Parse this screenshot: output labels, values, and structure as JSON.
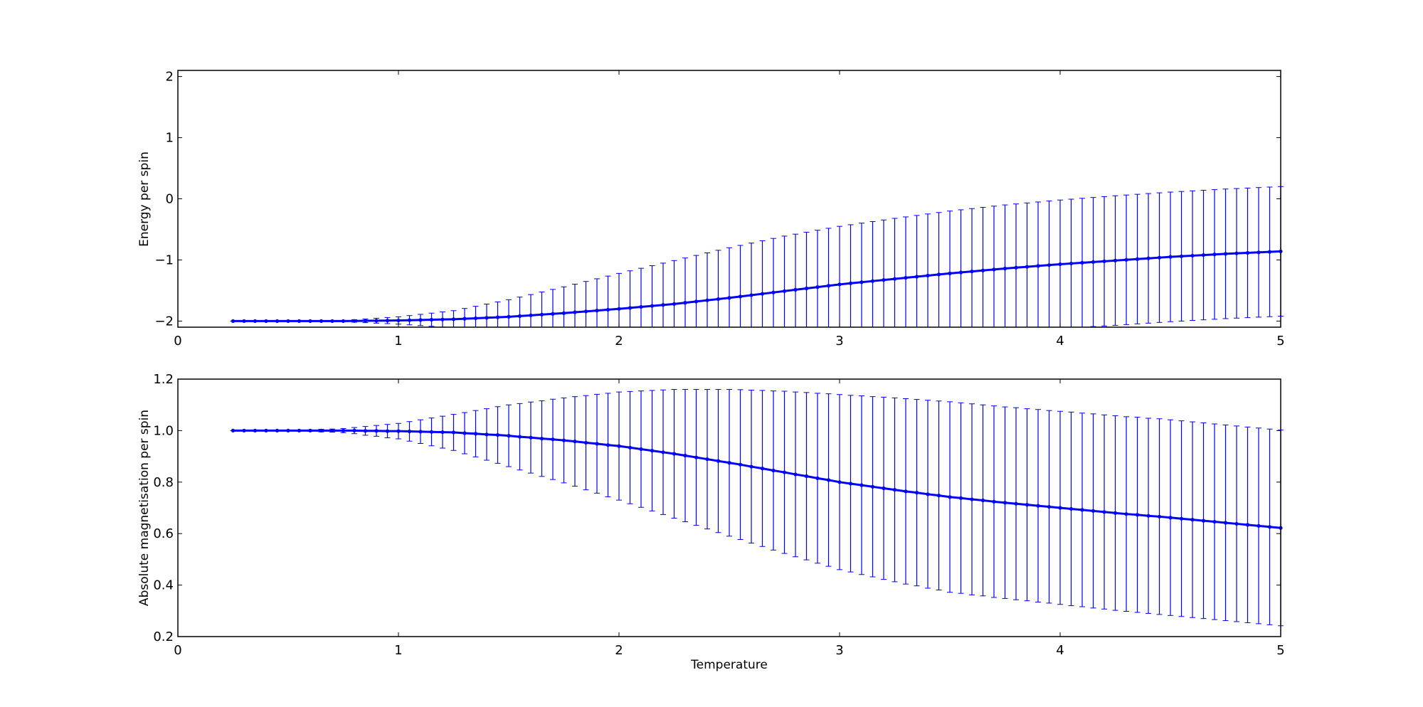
{
  "chart_data": [
    {
      "type": "errorbar",
      "title": "",
      "xlabel": "",
      "ylabel": "Energy per spin",
      "xlim": [
        0,
        5
      ],
      "ylim": [
        -2.1,
        2.1
      ],
      "xticks": [
        "0",
        "1",
        "2",
        "3",
        "4",
        "5"
      ],
      "xtick_values": [
        0,
        1,
        2,
        3,
        4,
        5
      ],
      "yticks": [
        "−2",
        "−1",
        "0",
        "1",
        "2"
      ],
      "ytick_values": [
        -2,
        -1,
        0,
        1,
        2
      ],
      "color": "#0000ff",
      "x_start": 0.25,
      "x_step": 0.05,
      "values": [
        -2.0,
        -2.0,
        -2.0,
        -2.0,
        -2.0,
        -2.0,
        -2.0,
        -2.0,
        -2.0,
        -2.0,
        -2.0,
        -1.998,
        -1.996,
        -1.994,
        -1.992,
        -1.99,
        -1.986,
        -1.982,
        -1.978,
        -1.974,
        -1.97,
        -1.962,
        -1.954,
        -1.946,
        -1.938,
        -1.93,
        -1.918,
        -1.906,
        -1.894,
        -1.882,
        -1.87,
        -1.856,
        -1.842,
        -1.828,
        -1.814,
        -1.8,
        -1.784,
        -1.768,
        -1.752,
        -1.736,
        -1.72,
        -1.7,
        -1.68,
        -1.66,
        -1.64,
        -1.62,
        -1.598,
        -1.576,
        -1.554,
        -1.532,
        -1.51,
        -1.488,
        -1.466,
        -1.444,
        -1.422,
        -1.4,
        -1.382,
        -1.364,
        -1.346,
        -1.328,
        -1.31,
        -1.292,
        -1.274,
        -1.256,
        -1.238,
        -1.22,
        -1.204,
        -1.188,
        -1.172,
        -1.156,
        -1.14,
        -1.126,
        -1.112,
        -1.098,
        -1.084,
        -1.07,
        -1.058,
        -1.046,
        -1.034,
        -1.022,
        -1.01,
        -0.998,
        -0.986,
        -0.974,
        -0.962,
        -0.95,
        -0.94,
        -0.93,
        -0.92,
        -0.91,
        -0.9,
        -0.892,
        -0.884,
        -0.876,
        -0.868,
        -0.86
      ],
      "errors": [
        0,
        0,
        0,
        0,
        0,
        0,
        0.002,
        0.004,
        0.006,
        0.008,
        0.01,
        0.02,
        0.03,
        0.04,
        0.05,
        0.06,
        0.076,
        0.092,
        0.108,
        0.124,
        0.14,
        0.168,
        0.196,
        0.224,
        0.252,
        0.28,
        0.31,
        0.34,
        0.37,
        0.4,
        0.43,
        0.46,
        0.49,
        0.52,
        0.55,
        0.58,
        0.606,
        0.632,
        0.658,
        0.684,
        0.71,
        0.732,
        0.754,
        0.776,
        0.798,
        0.82,
        0.836,
        0.852,
        0.868,
        0.884,
        0.9,
        0.91,
        0.92,
        0.93,
        0.94,
        0.95,
        0.958,
        0.966,
        0.974,
        0.982,
        0.99,
        0.996,
        1.002,
        1.008,
        1.014,
        1.02,
        1.024,
        1.028,
        1.032,
        1.036,
        1.04,
        1.042,
        1.044,
        1.046,
        1.048,
        1.05,
        1.052,
        1.054,
        1.056,
        1.058,
        1.06,
        1.06,
        1.06,
        1.06,
        1.06,
        1.06,
        1.06,
        1.06,
        1.06,
        1.06,
        1.06,
        1.06,
        1.06,
        1.06,
        1.06,
        1.06
      ]
    },
    {
      "type": "errorbar",
      "title": "",
      "xlabel": "Temperature",
      "ylabel": "Absolute magnetisation per spin",
      "xlim": [
        0,
        5
      ],
      "ylim": [
        0.2,
        1.2
      ],
      "xticks": [
        "0",
        "1",
        "2",
        "3",
        "4",
        "5"
      ],
      "xtick_values": [
        0,
        1,
        2,
        3,
        4,
        5
      ],
      "yticks": [
        "0.2",
        "0.4",
        "0.6",
        "0.8",
        "1.0",
        "1.2"
      ],
      "ytick_values": [
        0.2,
        0.4,
        0.6,
        0.8,
        1.0,
        1.2
      ],
      "color": "#0000ff",
      "x_start": 0.25,
      "x_step": 0.05,
      "values": [
        1.0,
        1.0,
        1.0,
        1.0,
        1.0,
        1.0,
        1.0,
        1.0,
        1.0,
        1.0,
        1.0,
        1.0,
        0.999,
        0.999,
        0.998,
        0.998,
        0.997,
        0.996,
        0.995,
        0.994,
        0.993,
        0.99,
        0.988,
        0.985,
        0.983,
        0.98,
        0.976,
        0.973,
        0.969,
        0.966,
        0.962,
        0.958,
        0.953,
        0.949,
        0.944,
        0.94,
        0.934,
        0.928,
        0.922,
        0.916,
        0.91,
        0.903,
        0.896,
        0.889,
        0.882,
        0.875,
        0.868,
        0.86,
        0.853,
        0.845,
        0.838,
        0.83,
        0.823,
        0.815,
        0.808,
        0.8,
        0.794,
        0.788,
        0.782,
        0.776,
        0.77,
        0.764,
        0.759,
        0.753,
        0.748,
        0.742,
        0.738,
        0.733,
        0.729,
        0.724,
        0.72,
        0.716,
        0.712,
        0.708,
        0.704,
        0.7,
        0.696,
        0.692,
        0.688,
        0.684,
        0.68,
        0.676,
        0.673,
        0.669,
        0.666,
        0.662,
        0.658,
        0.654,
        0.65,
        0.646,
        0.642,
        0.638,
        0.634,
        0.63,
        0.626,
        0.622
      ],
      "errors": [
        0,
        0,
        0,
        0,
        0,
        0,
        0.002,
        0.003,
        0.005,
        0.006,
        0.008,
        0.012,
        0.017,
        0.021,
        0.026,
        0.03,
        0.038,
        0.046,
        0.054,
        0.062,
        0.07,
        0.08,
        0.09,
        0.1,
        0.11,
        0.12,
        0.129,
        0.138,
        0.147,
        0.156,
        0.165,
        0.174,
        0.183,
        0.192,
        0.201,
        0.21,
        0.218,
        0.226,
        0.234,
        0.242,
        0.25,
        0.257,
        0.264,
        0.271,
        0.278,
        0.285,
        0.291,
        0.297,
        0.303,
        0.309,
        0.315,
        0.32,
        0.325,
        0.33,
        0.335,
        0.34,
        0.343,
        0.347,
        0.35,
        0.354,
        0.357,
        0.36,
        0.362,
        0.365,
        0.367,
        0.37,
        0.37,
        0.371,
        0.371,
        0.372,
        0.372,
        0.373,
        0.373,
        0.374,
        0.374,
        0.375,
        0.376,
        0.376,
        0.377,
        0.377,
        0.378,
        0.378,
        0.379,
        0.379,
        0.38,
        0.38,
        0.38,
        0.38,
        0.38,
        0.38,
        0.38,
        0.38,
        0.38,
        0.38,
        0.38,
        0.38
      ]
    }
  ]
}
